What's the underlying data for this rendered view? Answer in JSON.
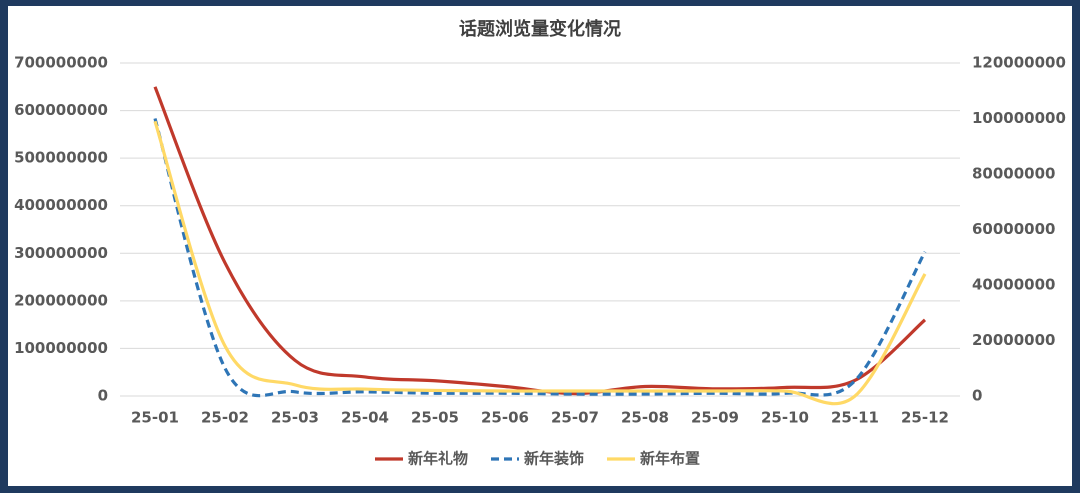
{
  "chart_data": {
    "type": "line",
    "title": "话题浏览量变化情况",
    "categories": [
      "25-01",
      "25-02",
      "25-03",
      "25-04",
      "25-05",
      "25-06",
      "25-07",
      "25-08",
      "25-09",
      "25-10",
      "25-11",
      "25-12"
    ],
    "series": [
      {
        "name": "新年礼物",
        "color": "#c0392b",
        "dashed": false,
        "values": [
          650000000,
          280000000,
          75000000,
          40000000,
          32000000,
          20000000,
          5000000,
          20000000,
          15000000,
          18000000,
          33000000,
          160000000
        ]
      },
      {
        "name": "新年装饰",
        "color": "#2e75b6",
        "dashed": true,
        "axis": "y2",
        "values": [
          100000000,
          10000000,
          1500000,
          1500000,
          1000000,
          1000000,
          700000,
          700000,
          1000000,
          1000000,
          5500000,
          52000000
        ]
      },
      {
        "name": "新年布置",
        "color": "#ffd966",
        "dashed": false,
        "axis": "y2",
        "values": [
          99000000,
          18000000,
          4000000,
          2500000,
          2000000,
          1800000,
          1800000,
          1800000,
          1800000,
          1800000,
          0,
          44000000
        ]
      }
    ],
    "ylim": [
      0,
      700000000
    ],
    "yticks": [
      0,
      100000000,
      200000000,
      300000000,
      400000000,
      500000000,
      600000000,
      700000000
    ],
    "y2lim": [
      0,
      120000000
    ],
    "y2ticks": [
      0,
      20000000,
      40000000,
      60000000,
      80000000,
      100000000,
      120000000
    ],
    "grid": true,
    "legend": "bottom"
  }
}
